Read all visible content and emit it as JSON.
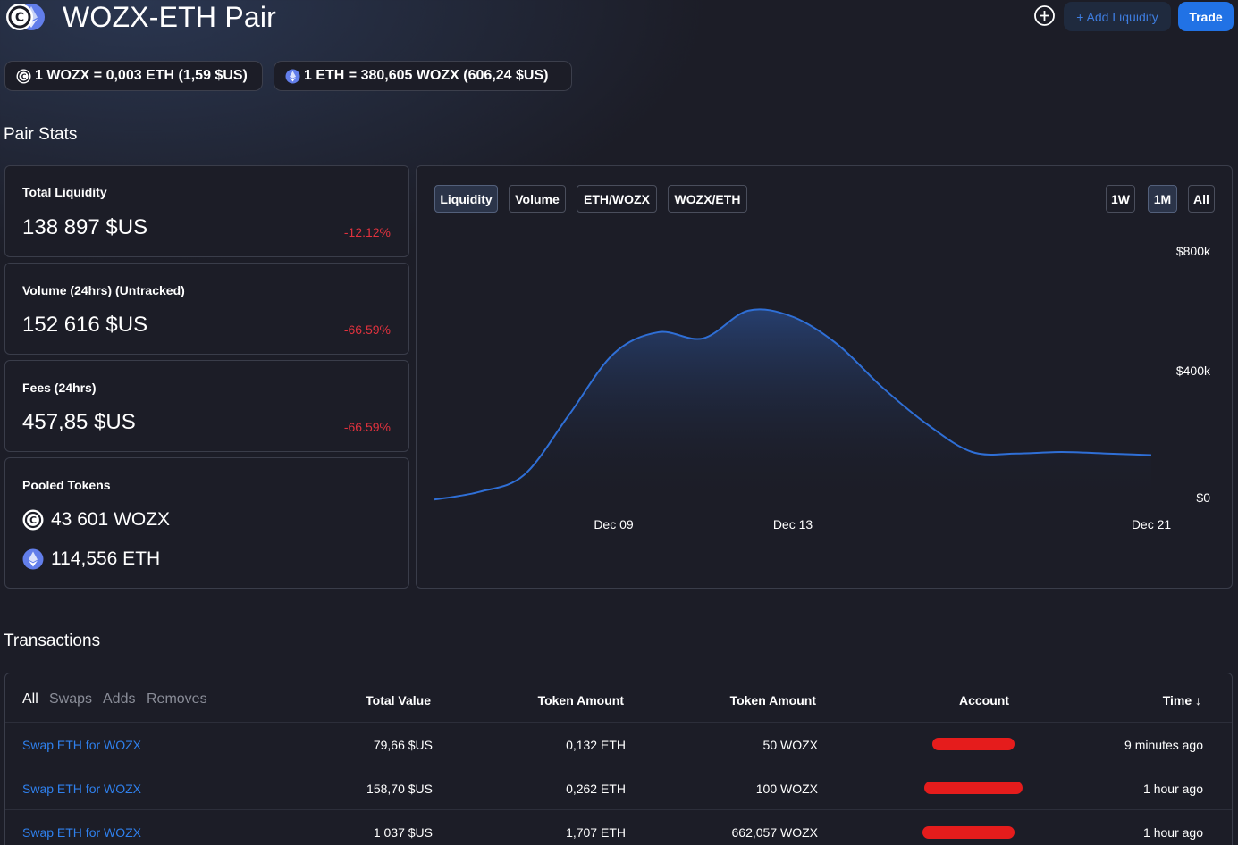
{
  "header": {
    "title": "WOZX-ETH Pair",
    "add_liquidity_label": "+ Add Liquidity",
    "trade_label": "Trade"
  },
  "rates": {
    "wozx_to_eth": "1 WOZX = 0,003 ETH (1,59 $US)",
    "eth_to_wozx": "1 ETH = 380,605 WOZX (606,24 $US)"
  },
  "pair_stats": {
    "title": "Pair Stats",
    "total_liquidity": {
      "label": "Total Liquidity",
      "value": "138 897 $US",
      "change": "-12.12%"
    },
    "volume": {
      "label": "Volume (24hrs) (Untracked)",
      "value": "152 616 $US",
      "change": "-66.59%"
    },
    "fees": {
      "label": "Fees (24hrs)",
      "value": "457,85 $US",
      "change": "-66.59%"
    },
    "pooled": {
      "label": "Pooled Tokens",
      "wozx": "43 601 WOZX",
      "eth": "114,556 ETH"
    }
  },
  "chart": {
    "tabs": [
      "Liquidity",
      "Volume",
      "ETH/WOZX",
      "WOZX/ETH"
    ],
    "active_tab": "Liquidity",
    "ranges": [
      "1W",
      "1M",
      "All"
    ],
    "active_range": "1M"
  },
  "chart_data": {
    "type": "area",
    "title": "",
    "xlabel": "",
    "ylabel": "",
    "x_ticks": [
      "Dec 09",
      "Dec 13",
      "Dec 21"
    ],
    "y_ticks": [
      "$800k",
      "$400k",
      "$0"
    ],
    "ylim": [
      0,
      800000
    ],
    "x": [
      "Dec 05",
      "Dec 06",
      "Dec 07",
      "Dec 08",
      "Dec 09",
      "Dec 10",
      "Dec 11",
      "Dec 12",
      "Dec 13",
      "Dec 14",
      "Dec 15",
      "Dec 16",
      "Dec 17",
      "Dec 18",
      "Dec 19",
      "Dec 20",
      "Dec 21"
    ],
    "values": [
      5000,
      30000,
      85000,
      280000,
      480000,
      550000,
      530000,
      620000,
      600000,
      510000,
      370000,
      250000,
      160000,
      155000,
      160000,
      155000,
      150000
    ],
    "color": "#2f6fd6",
    "grid": false
  },
  "transactions": {
    "title": "Transactions",
    "filters": [
      "All",
      "Swaps",
      "Adds",
      "Removes"
    ],
    "active_filter": "All",
    "headers": {
      "total_value": "Total Value",
      "token_amount_1": "Token Amount",
      "token_amount_2": "Token Amount",
      "account": "Account",
      "time": "Time ↓"
    },
    "rows": [
      {
        "action": "Swap ETH for WOZX",
        "total_value": "79,66 $US",
        "token1": "0,132 ETH",
        "token2": "50 WOZX",
        "time": "9 minutes ago"
      },
      {
        "action": "Swap ETH for WOZX",
        "total_value": "158,70 $US",
        "token1": "0,262 ETH",
        "token2": "100 WOZX",
        "time": "1 hour ago"
      },
      {
        "action": "Swap ETH for WOZX",
        "total_value": "1 037 $US",
        "token1": "1,707 ETH",
        "token2": "662,057 WOZX",
        "time": "1 hour ago"
      }
    ]
  },
  "icons": {
    "logo": "wozx-eth-logo-icon",
    "plus": "plus-circle-icon",
    "wozx": "wozx-token-icon",
    "eth": "eth-token-icon"
  }
}
